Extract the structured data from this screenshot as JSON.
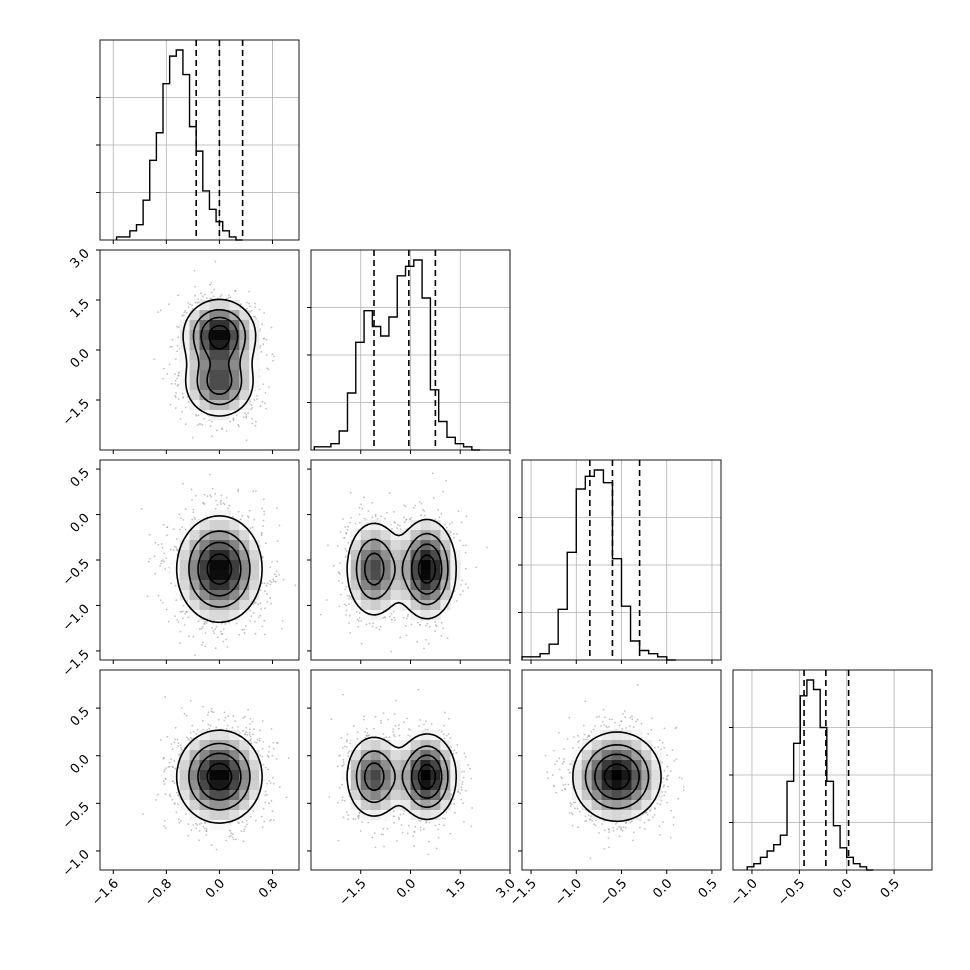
{
  "chart_data": {
    "type": "corner",
    "grid": true,
    "params": [
      {
        "range": [
          -1.8,
          1.2
        ],
        "ticks": [
          -1.6,
          -0.8,
          0.0,
          0.8
        ],
        "tick_labels": [
          "−1.6",
          "−0.8",
          "0.0",
          "0.8"
        ],
        "quantiles": [
          -0.35,
          0.0,
          0.35
        ],
        "histogram": {
          "start": -1.55,
          "width": 0.1,
          "counts": [
            1,
            1,
            3,
            5,
            13,
            26,
            35,
            51,
            60,
            62,
            54,
            37,
            29,
            16,
            10,
            6,
            3,
            1,
            0
          ]
        }
      },
      {
        "range": [
          -3.0,
          3.0
        ],
        "ticks": [
          -1.5,
          0.0,
          1.5,
          3.0
        ],
        "tick_labels": [
          "−1.5",
          "0.0",
          "1.5",
          "3.0"
        ],
        "quantiles": [
          -1.1,
          -0.05,
          0.75
        ],
        "histogram": {
          "start": -2.9,
          "width": 0.25,
          "counts": [
            1,
            1,
            2,
            6,
            18,
            34,
            44,
            39,
            36,
            42,
            55,
            58,
            60,
            48,
            19,
            9,
            4,
            2,
            1,
            0
          ]
        }
      },
      {
        "range": [
          -1.6,
          0.6
        ],
        "ticks": [
          -1.5,
          -1.0,
          -0.5,
          0.0,
          0.5
        ],
        "tick_labels": [
          "−1.5",
          "−1.0",
          "−0.5",
          "0.0",
          "0.5"
        ],
        "quantiles": [
          -0.85,
          -0.6,
          -0.3
        ],
        "histogram": {
          "start": -1.6,
          "width": 0.1,
          "counts": [
            1,
            1,
            2,
            5,
            16,
            34,
            54,
            58,
            60,
            56,
            32,
            17,
            6,
            3,
            2,
            1,
            0
          ]
        }
      },
      {
        "range": [
          -1.2,
          0.9
        ],
        "ticks": [
          -1.0,
          -0.5,
          0.0,
          0.5
        ],
        "tick_labels": [
          "−1.0",
          "−0.5",
          "0.0",
          "0.5"
        ],
        "quantiles": [
          -0.45,
          -0.22,
          0.02
        ],
        "histogram": {
          "start": -1.05,
          "width": 0.07,
          "counts": [
            1,
            2,
            4,
            6,
            8,
            11,
            28,
            40,
            55,
            60,
            57,
            45,
            28,
            14,
            7,
            4,
            2,
            1,
            0
          ]
        }
      }
    ],
    "pairs": [
      {
        "row": 1,
        "col": 0,
        "modes": [
          {
            "x": 0.0,
            "y": 0.45,
            "sx": 0.28,
            "sy": 0.55,
            "w": 1.0
          },
          {
            "x": 0.0,
            "y": -1.0,
            "sx": 0.28,
            "sy": 0.55,
            "w": 0.75
          }
        ]
      },
      {
        "row": 2,
        "col": 0,
        "modes": [
          {
            "x": 0.0,
            "y": -0.6,
            "sx": 0.33,
            "sy": 0.3,
            "w": 1.0
          }
        ]
      },
      {
        "row": 2,
        "col": 1,
        "modes": [
          {
            "x": -1.1,
            "y": -0.6,
            "sx": 0.45,
            "sy": 0.28,
            "w": 0.75
          },
          {
            "x": 0.5,
            "y": -0.6,
            "sx": 0.45,
            "sy": 0.28,
            "w": 1.0
          }
        ]
      },
      {
        "row": 3,
        "col": 0,
        "modes": [
          {
            "x": 0.0,
            "y": -0.22,
            "sx": 0.33,
            "sy": 0.25,
            "w": 1.0
          }
        ]
      },
      {
        "row": 3,
        "col": 1,
        "modes": [
          {
            "x": -1.1,
            "y": -0.22,
            "sx": 0.45,
            "sy": 0.23,
            "w": 0.75
          },
          {
            "x": 0.5,
            "y": -0.22,
            "sx": 0.45,
            "sy": 0.23,
            "w": 1.0
          }
        ]
      },
      {
        "row": 3,
        "col": 2,
        "modes": [
          {
            "x": -0.55,
            "y": -0.22,
            "sx": 0.25,
            "sy": 0.24,
            "w": 1.0
          }
        ]
      }
    ],
    "contour_levels": [
      0.15,
      0.38,
      0.62,
      0.86
    ]
  }
}
